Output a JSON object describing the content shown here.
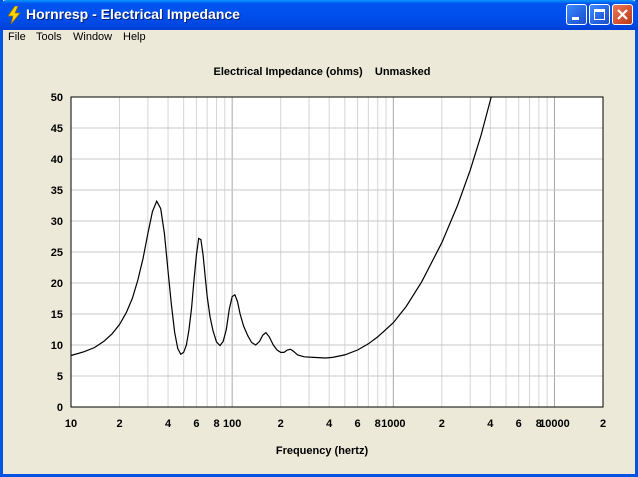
{
  "window": {
    "title": "Hornresp - Electrical Impedance"
  },
  "menu": {
    "items": [
      "File",
      "Tools",
      "Window",
      "Help"
    ]
  },
  "colors": {
    "titlebar": "#0054e3",
    "window_bg": "#ece9d8",
    "plot_bg": "#ffffff",
    "grid": "#c8c8c8",
    "curve": "#000000"
  },
  "chart_data": {
    "type": "line",
    "title": "Electrical Impedance (ohms)    Unmasked",
    "xlabel": "Frequency (hertz)",
    "ylabel": "",
    "xscale": "log",
    "xlim": [
      10,
      20000
    ],
    "ylim": [
      0,
      50
    ],
    "y_ticks": [
      0,
      5,
      10,
      15,
      20,
      25,
      30,
      35,
      40,
      45,
      50
    ],
    "x_ticks": [
      {
        "value": 10,
        "label": "10"
      },
      {
        "value": 20,
        "label": "2"
      },
      {
        "value": 40,
        "label": "4"
      },
      {
        "value": 60,
        "label": "6"
      },
      {
        "value": 80,
        "label": "8"
      },
      {
        "value": 100,
        "label": "100"
      },
      {
        "value": 200,
        "label": "2"
      },
      {
        "value": 400,
        "label": "4"
      },
      {
        "value": 600,
        "label": "6"
      },
      {
        "value": 800,
        "label": "8"
      },
      {
        "value": 1000,
        "label": "1000"
      },
      {
        "value": 2000,
        "label": "2"
      },
      {
        "value": 4000,
        "label": "4"
      },
      {
        "value": 6000,
        "label": "6"
      },
      {
        "value": 8000,
        "label": "8"
      },
      {
        "value": 10000,
        "label": "10000"
      },
      {
        "value": 20000,
        "label": "2"
      }
    ],
    "grid": true,
    "series": [
      {
        "values": [
          [
            10,
            8.3
          ],
          [
            12,
            8.9
          ],
          [
            14,
            9.6
          ],
          [
            16,
            10.6
          ],
          [
            18,
            11.8
          ],
          [
            20,
            13.3
          ],
          [
            22,
            15.2
          ],
          [
            24,
            17.5
          ],
          [
            26,
            20.5
          ],
          [
            28,
            24.0
          ],
          [
            30,
            28.0
          ],
          [
            32,
            31.5
          ],
          [
            34,
            33.2
          ],
          [
            36,
            32.0
          ],
          [
            38,
            28.0
          ],
          [
            40,
            22.0
          ],
          [
            42,
            16.5
          ],
          [
            44,
            12.0
          ],
          [
            46,
            9.4
          ],
          [
            48,
            8.5
          ],
          [
            50,
            8.8
          ],
          [
            52,
            10.0
          ],
          [
            54,
            12.5
          ],
          [
            56,
            16.0
          ],
          [
            58,
            20.5
          ],
          [
            60,
            24.5
          ],
          [
            62,
            27.2
          ],
          [
            64,
            27.0
          ],
          [
            66,
            24.5
          ],
          [
            68,
            21.0
          ],
          [
            70,
            17.8
          ],
          [
            73,
            14.5
          ],
          [
            76,
            12.3
          ],
          [
            80,
            10.5
          ],
          [
            84,
            9.9
          ],
          [
            88,
            10.6
          ],
          [
            92,
            12.5
          ],
          [
            96,
            15.8
          ],
          [
            100,
            17.8
          ],
          [
            104,
            18.1
          ],
          [
            108,
            17.0
          ],
          [
            112,
            15.0
          ],
          [
            118,
            13.0
          ],
          [
            125,
            11.5
          ],
          [
            132,
            10.4
          ],
          [
            140,
            10.0
          ],
          [
            148,
            10.6
          ],
          [
            155,
            11.6
          ],
          [
            162,
            12.0
          ],
          [
            170,
            11.3
          ],
          [
            180,
            10.0
          ],
          [
            190,
            9.2
          ],
          [
            200,
            8.8
          ],
          [
            210,
            8.8
          ],
          [
            220,
            9.2
          ],
          [
            230,
            9.3
          ],
          [
            240,
            9.0
          ],
          [
            255,
            8.4
          ],
          [
            280,
            8.1
          ],
          [
            320,
            8.0
          ],
          [
            380,
            7.9
          ],
          [
            420,
            8.0
          ],
          [
            500,
            8.4
          ],
          [
            600,
            9.2
          ],
          [
            700,
            10.2
          ],
          [
            800,
            11.3
          ],
          [
            1000,
            13.6
          ],
          [
            1200,
            16.2
          ],
          [
            1500,
            20.2
          ],
          [
            2000,
            26.5
          ],
          [
            2500,
            32.5
          ],
          [
            3000,
            38.2
          ],
          [
            3500,
            43.8
          ],
          [
            4000,
            49.5
          ],
          [
            4050,
            50.0
          ]
        ]
      }
    ]
  }
}
